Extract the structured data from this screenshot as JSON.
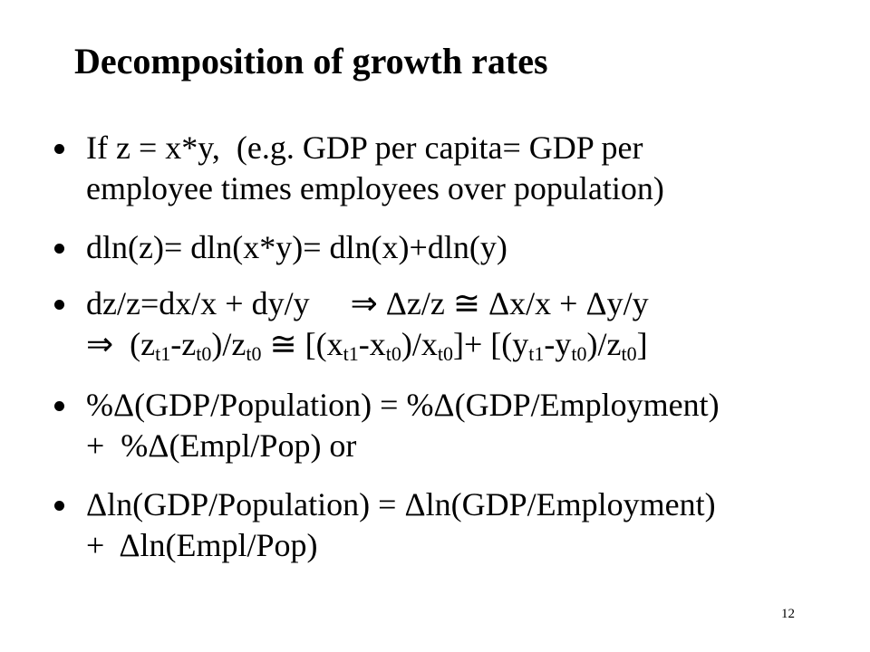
{
  "title": "Decomposition of growth rates",
  "bullets": [
    {
      "lines": [
        [
          "If z = x*y,  (e.g. GDP per capita= GDP per"
        ],
        [
          "employee times employees over population)"
        ]
      ]
    },
    {
      "lines": [
        [
          "dln(z)= dln(x*y)= dln(x)+dln(y)"
        ]
      ]
    },
    {
      "lines": [
        [
          "dz/z=dx/x + dy/y     ⇒ Δz/z ≅ Δx/x + Δy/y"
        ],
        [
          "⇒  (z",
          {
            "sub": "t1"
          },
          "-z",
          {
            "sub": "t0"
          },
          ")/z",
          {
            "sub": "t0"
          },
          " ≅ [(x",
          {
            "sub": "t1"
          },
          "-x",
          {
            "sub": "t0"
          },
          ")/x",
          {
            "sub": "t0"
          },
          "]+ [(y",
          {
            "sub": "t1"
          },
          "-y",
          {
            "sub": "t0"
          },
          ")/z",
          {
            "sub": "t0"
          },
          "]"
        ]
      ]
    },
    {
      "lines": [
        [
          "%Δ(GDP/Population) = %Δ(GDP/Employment)"
        ],
        [
          "+  %Δ(Empl/Pop) or"
        ]
      ]
    },
    {
      "lines": [
        [
          "Δln(GDP/Population) = Δln(GDP/Employment)"
        ],
        [
          "+  Δln(Empl/Pop)"
        ]
      ]
    }
  ],
  "page_number": "12"
}
